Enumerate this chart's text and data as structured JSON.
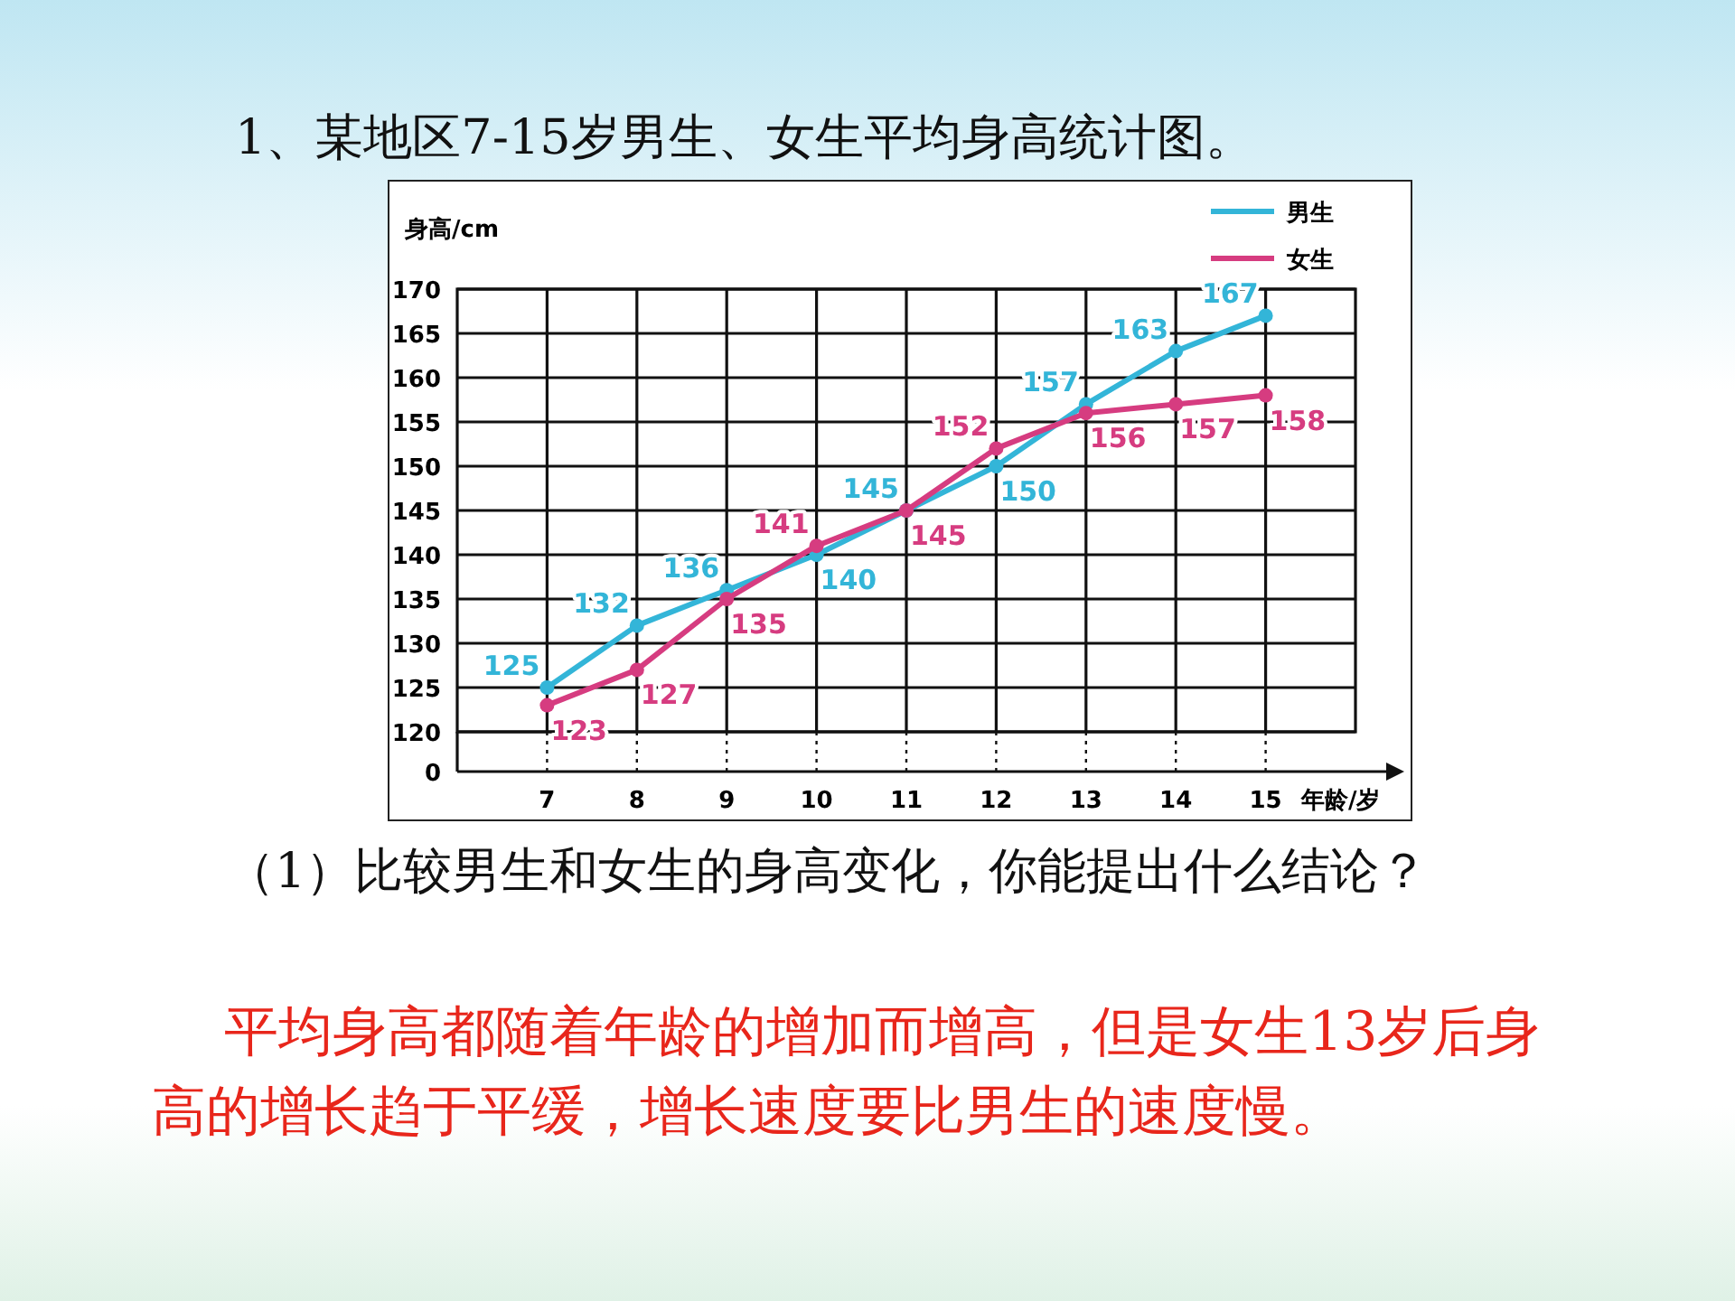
{
  "chart_data": {
    "type": "line",
    "title": "1、某地区7-15岁男生、女生平均身高统计图。",
    "xlabel": "年龄/岁",
    "ylabel": "身高/cm",
    "x": [
      7,
      8,
      9,
      10,
      11,
      12,
      13,
      14,
      15
    ],
    "series": [
      {
        "name": "男生",
        "color": "#33b5d8",
        "values": [
          125,
          132,
          136,
          140,
          145,
          150,
          157,
          163,
          167
        ]
      },
      {
        "name": "女生",
        "color": "#d63c80",
        "values": [
          123,
          127,
          135,
          141,
          145,
          152,
          156,
          157,
          158
        ]
      }
    ],
    "xlim": [
      6,
      16
    ],
    "xticks": [
      7,
      8,
      9,
      10,
      11,
      12,
      13,
      14,
      15
    ],
    "ylim": [
      120,
      170
    ],
    "yticks": [
      120,
      125,
      130,
      135,
      140,
      145,
      150,
      155,
      160,
      165,
      170
    ],
    "grid": true,
    "legend": "top right",
    "marker": "circle",
    "line_style": "solid",
    "data_labels": true,
    "annotations": [
      "0",
      "（1）比较男生和女生的身高变化，你能提出什么结论？",
      "平均身高都随着年龄的增加而增高，但是女生13岁后身高的增长趋于平缓，增长速度要比男生的速度慢。"
    ]
  }
}
